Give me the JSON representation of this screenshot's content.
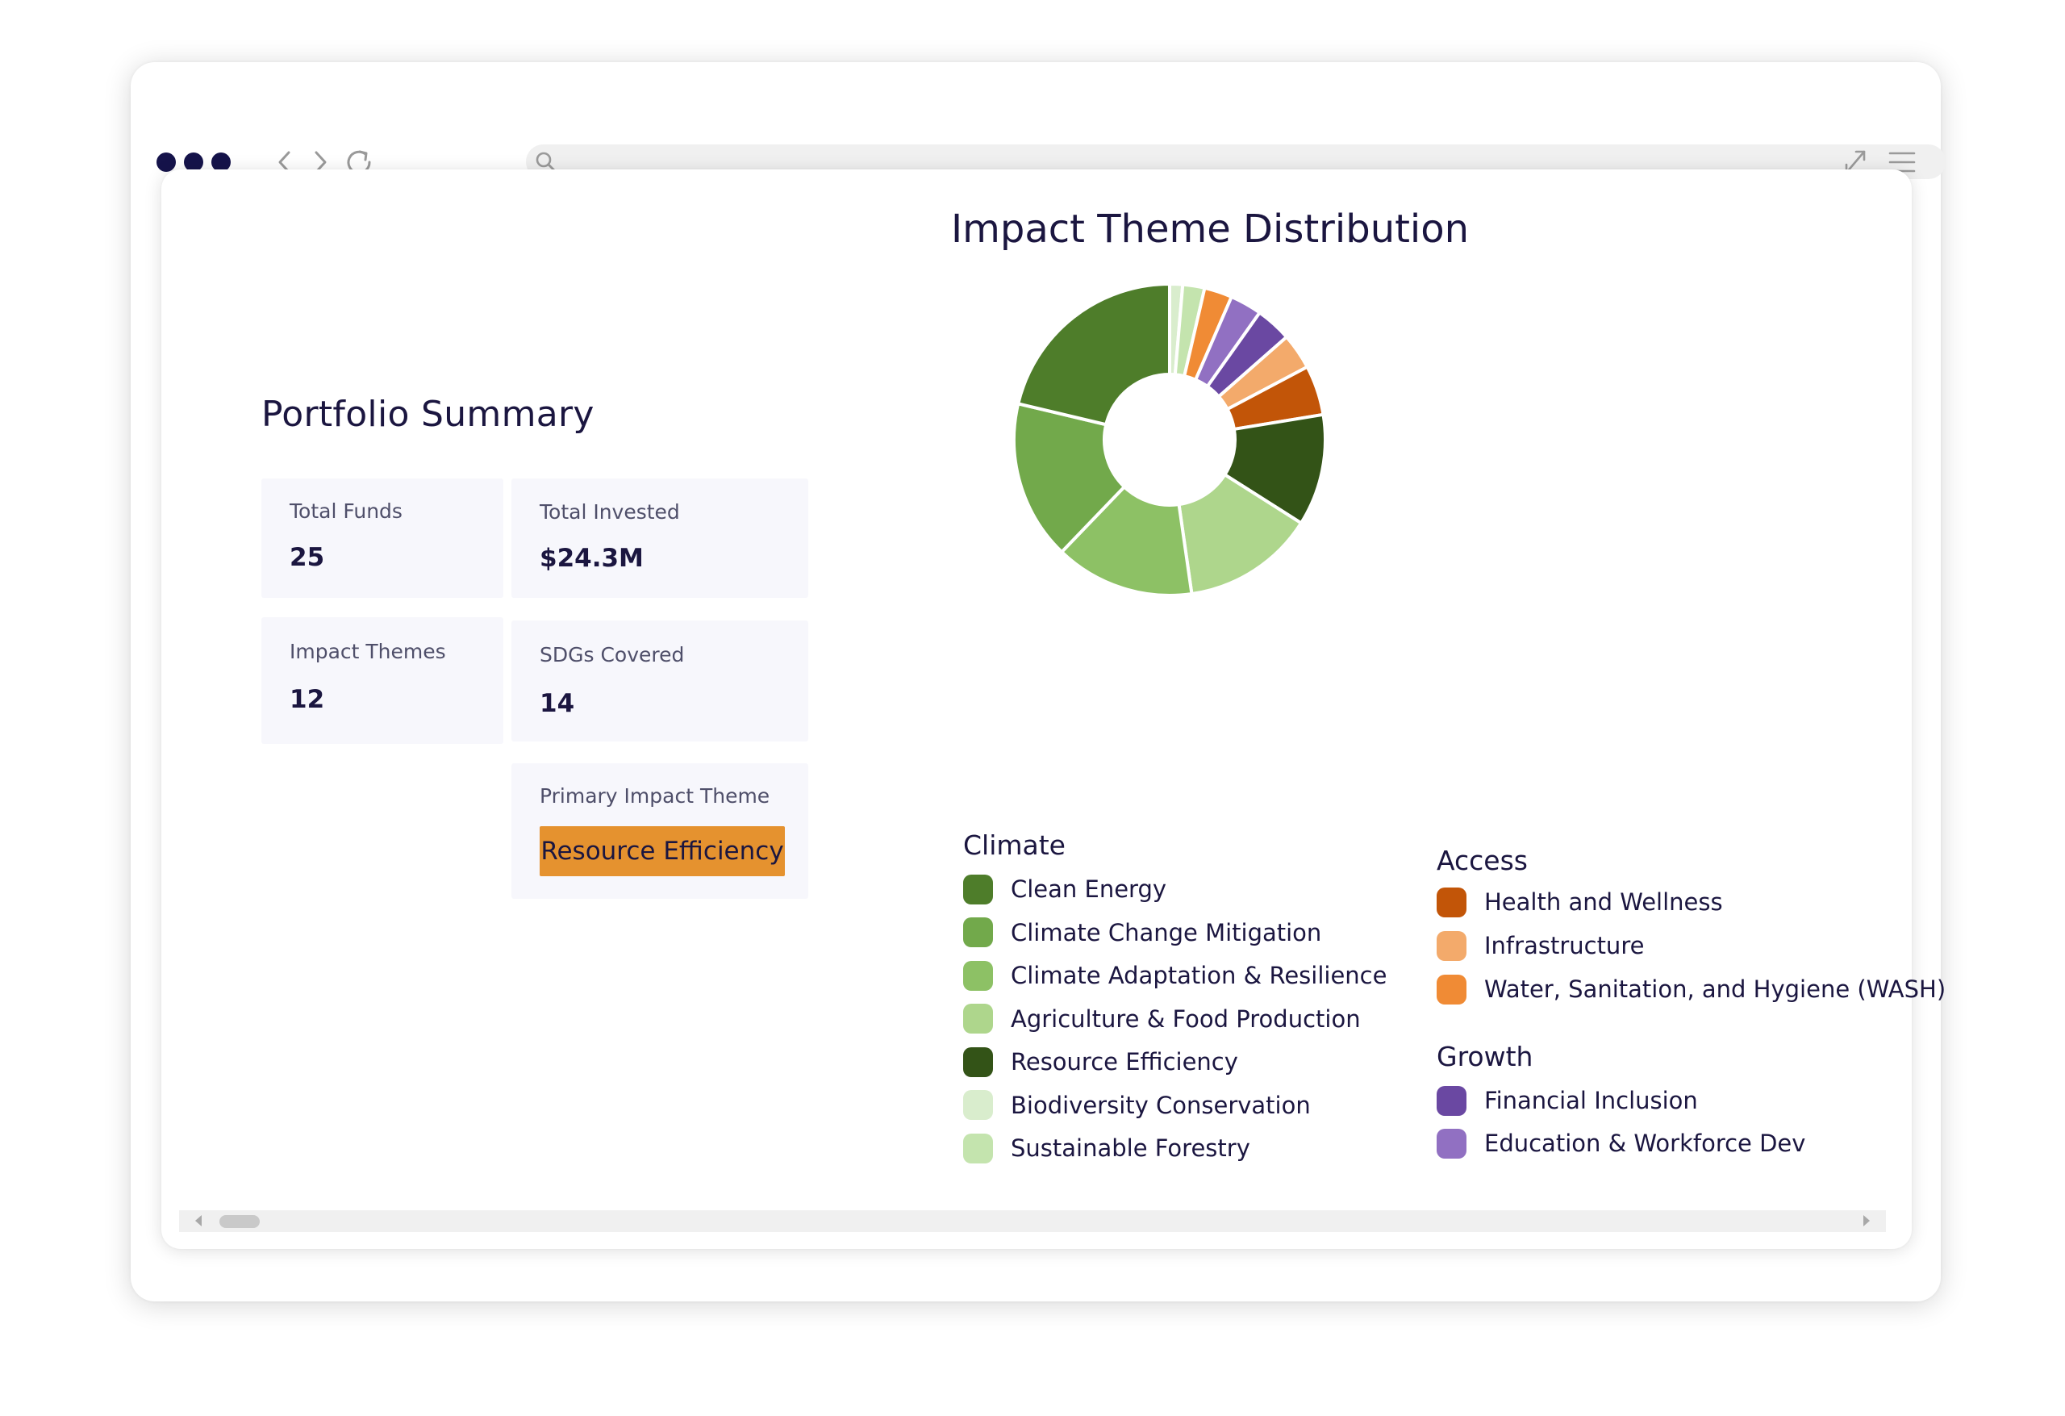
{
  "browser": {
    "address_value": "",
    "icons": [
      "dots-icon",
      "back-icon",
      "forward-icon",
      "reload-icon",
      "search-icon",
      "expand-icon",
      "menu-icon"
    ]
  },
  "summary": {
    "title": "Portfolio Summary",
    "total_funds": {
      "label": "Total Funds",
      "value": "25"
    },
    "total_invested": {
      "label": "Total Invested",
      "value": "$24.3M"
    },
    "impact_themes": {
      "label": "Impact Themes",
      "value": "12"
    },
    "sdgs_covered": {
      "label": "SDGs Covered",
      "value": "14"
    },
    "primary_theme": {
      "label": "Primary Impact Theme",
      "value": "Resource Efficiency"
    }
  },
  "legend": {
    "groups": [
      {
        "name": "Climate",
        "items": [
          {
            "label": "Clean Energy",
            "color": "#4e7d2a"
          },
          {
            "label": "Climate Change Mitigation",
            "color": "#72a94b"
          },
          {
            "label": "Climate Adaptation & Resilience",
            "color": "#8dc165"
          },
          {
            "label": "Agriculture & Food Production",
            "color": "#aed68c"
          },
          {
            "label": "Resource Efficiency",
            "color": "#335317"
          },
          {
            "label": "Biodiversity Conservation",
            "color": "#d9edcd"
          },
          {
            "label": "Sustainable Forestry",
            "color": "#c4e4ae"
          }
        ]
      },
      {
        "name": "Access",
        "items": [
          {
            "label": "Health and Wellness",
            "color": "#c25508"
          },
          {
            "label": "Infrastructure",
            "color": "#f3aa6b"
          },
          {
            "label": "Water, Sanitation, and Hygiene (WASH)",
            "color": "#f08b35"
          }
        ]
      },
      {
        "name": "Growth",
        "items": [
          {
            "label": "Financial Inclusion",
            "color": "#6a48a2"
          },
          {
            "label": "Education & Workforce Dev",
            "color": "#9170c2"
          }
        ]
      }
    ]
  },
  "chart_data": {
    "type": "pie",
    "title": "Impact Theme Distribution",
    "donut": true,
    "slices": [
      {
        "label": "Biodiversity Conservation",
        "value": 1.3,
        "color": "#d9edcd"
      },
      {
        "label": "Sustainable Forestry",
        "value": 2.2,
        "color": "#c4e4ae"
      },
      {
        "label": "Water, Sanitation, and Hygiene (WASH)",
        "value": 2.8,
        "color": "#f08b35"
      },
      {
        "label": "Education & Workforce Dev",
        "value": 3.2,
        "color": "#9170c2"
      },
      {
        "label": "Financial Inclusion",
        "value": 3.6,
        "color": "#6a48a2"
      },
      {
        "label": "Infrastructure",
        "value": 3.6,
        "color": "#f3aa6b"
      },
      {
        "label": "Health and Wellness",
        "value": 5.0,
        "color": "#c25508"
      },
      {
        "label": "Resource Efficiency",
        "value": 11.2,
        "color": "#335317"
      },
      {
        "label": "Agriculture & Food Production",
        "value": 13.3,
        "color": "#aed68c"
      },
      {
        "label": "Climate Adaptation & Resilience",
        "value": 14.0,
        "color": "#8dc165"
      },
      {
        "label": "Climate Change Mitigation",
        "value": 16.0,
        "color": "#72a94b"
      },
      {
        "label": "Clean Energy",
        "value": 20.6,
        "color": "#4e7d2a"
      }
    ]
  }
}
